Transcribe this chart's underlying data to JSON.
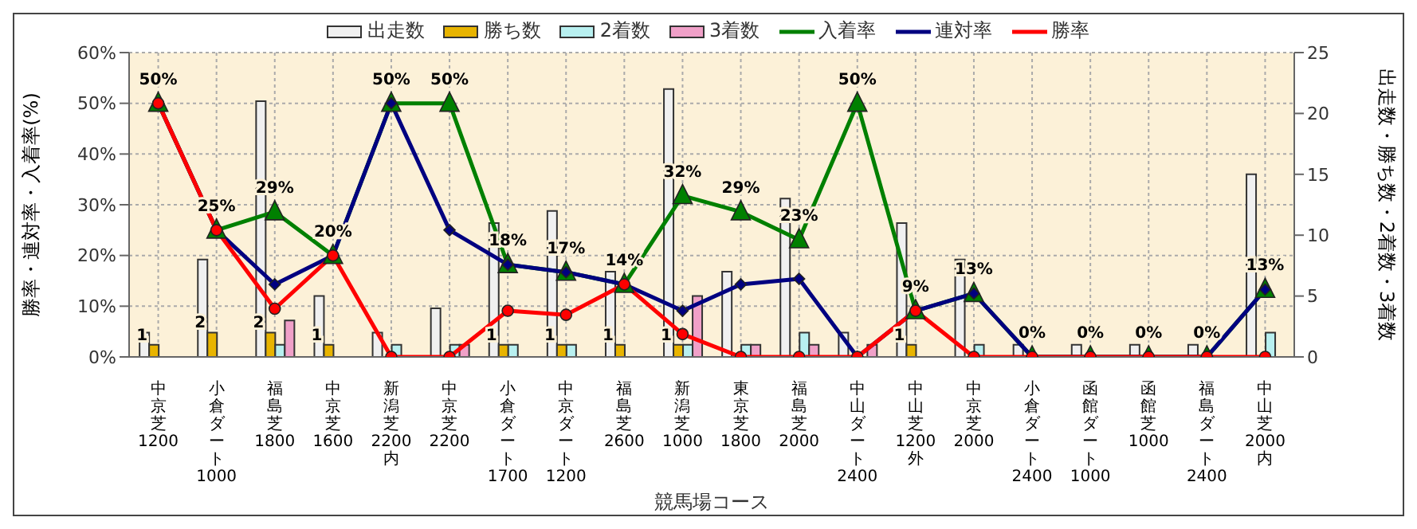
{
  "chart_data": {
    "type": "bar",
    "xlabel": "競馬場コース",
    "ylabel": "勝率・連対率・入着率(%)",
    "y2label": "出走数・勝ち数・2着数・3着数",
    "categories": [
      "中京芝1200",
      "小倉ダート1000",
      "福島芝1800",
      "中京芝1600",
      "新潟芝2200内",
      "中京芝2200",
      "小倉ダート1700",
      "中京ダート1200",
      "福島芝2600",
      "新潟芝1000",
      "東京芝1800",
      "福島芝2000",
      "中山ダート2400",
      "中山芝1200外",
      "中京芝2000",
      "小倉ダート2400",
      "函館ダート1000",
      "函館芝1000",
      "福島ダート2400",
      "中山芝2000内"
    ],
    "series": [
      {
        "name": "出走数",
        "axis": "y2",
        "color": "#f0f0f0",
        "values": [
          2,
          8,
          21,
          5,
          2,
          4,
          11,
          12,
          7,
          22,
          7,
          13,
          2,
          11,
          8,
          1,
          1,
          1,
          1,
          15
        ]
      },
      {
        "name": "勝ち数",
        "axis": "y2",
        "color": "#e8b400",
        "values": [
          1,
          2,
          2,
          1,
          0,
          0,
          1,
          1,
          1,
          1,
          0,
          0,
          0,
          1,
          0,
          0,
          0,
          0,
          0,
          0
        ],
        "value_labels": [
          "1",
          "2",
          "2",
          "1",
          null,
          null,
          "1",
          "1",
          "1",
          "1",
          null,
          null,
          null,
          "1",
          null,
          null,
          null,
          null,
          null,
          null
        ]
      },
      {
        "name": "2着数",
        "axis": "y2",
        "color": "#b8f0f0",
        "values": [
          0,
          0,
          1,
          0,
          1,
          1,
          1,
          1,
          0,
          1,
          1,
          2,
          0,
          0,
          1,
          0,
          0,
          0,
          0,
          2
        ]
      },
      {
        "name": "3着数",
        "axis": "y2",
        "color": "#f0a0c8",
        "values": [
          0,
          0,
          3,
          0,
          0,
          1,
          0,
          0,
          0,
          5,
          1,
          1,
          1,
          0,
          0,
          0,
          0,
          0,
          0,
          0
        ]
      },
      {
        "name": "入着率",
        "type": "line",
        "axis": "y",
        "color": "#008000",
        "marker": "triangle",
        "values": [
          50,
          25,
          28.6,
          20,
          50,
          50,
          18.2,
          16.7,
          14.3,
          31.8,
          28.6,
          23.1,
          50,
          9.1,
          12.5,
          0,
          0,
          0,
          0,
          13.3
        ],
        "value_labels": [
          "50%",
          "25%",
          "29%",
          "20%",
          "50%",
          "50%",
          "18%",
          "17%",
          "14%",
          "32%",
          "29%",
          "23%",
          "50%",
          "9%",
          "13%",
          "0%",
          "0%",
          "0%",
          "0%",
          "13%"
        ]
      },
      {
        "name": "連対率",
        "type": "line",
        "axis": "y",
        "color": "#000080",
        "marker": "diamond",
        "values": [
          50,
          25,
          14.3,
          20,
          50,
          25,
          18.2,
          16.7,
          14.3,
          9.1,
          14.3,
          15.4,
          0,
          9.1,
          12.5,
          0,
          0,
          0,
          0,
          13.3
        ]
      },
      {
        "name": "勝率",
        "type": "line",
        "axis": "y",
        "color": "#ff0000",
        "marker": "circle",
        "values": [
          50,
          25,
          9.5,
          20,
          0,
          0,
          9.1,
          8.3,
          14.3,
          4.5,
          0,
          0,
          0,
          9.1,
          0,
          0,
          0,
          0,
          0,
          0
        ]
      }
    ],
    "ylim": [
      0,
      60
    ],
    "yticks": [
      {
        "value": 0,
        "label": "0%"
      },
      {
        "value": 10,
        "label": "10%"
      },
      {
        "value": 20,
        "label": "20%"
      },
      {
        "value": 30,
        "label": "30%"
      },
      {
        "value": 40,
        "label": "40%"
      },
      {
        "value": 50,
        "label": "50%"
      },
      {
        "value": 60,
        "label": "60%"
      }
    ],
    "y2lim": [
      0,
      25
    ],
    "y2ticks": [
      0,
      5,
      10,
      15,
      20,
      25
    ],
    "grid": true,
    "legend": "top"
  }
}
